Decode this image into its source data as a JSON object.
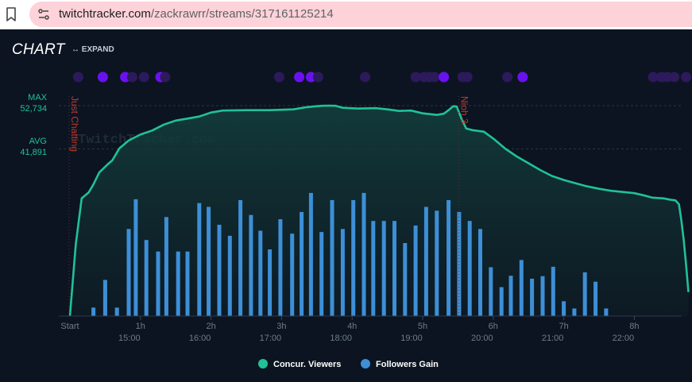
{
  "browser": {
    "url_host": "twitchtracker.com",
    "url_path": "/zackrawrr/streams/317161125214"
  },
  "header": {
    "title": "CHART",
    "expand_label": "EXPAND"
  },
  "watermark": "TwitchTracker.com",
  "stats": {
    "max_label": "MAX",
    "max_value": "52,734",
    "avg_label": "AVG",
    "avg_value": "41,891"
  },
  "games": [
    {
      "label": "Just Chatting",
      "start_min": 0
    },
    {
      "label": "Nioh 3",
      "start_min": 330
    }
  ],
  "colors": {
    "viewers": "#21c197",
    "followers": "#3d8fd7",
    "game_label": "#c0392b",
    "dot_bright": "#6a11f0",
    "dot_dim": "#2c1a5c"
  },
  "event_dots": [
    {
      "t": 7,
      "bright": false
    },
    {
      "t": 28,
      "bright": true
    },
    {
      "t": 47,
      "bright": true
    },
    {
      "t": 53,
      "bright": false
    },
    {
      "t": 63,
      "bright": false
    },
    {
      "t": 77,
      "bright": true
    },
    {
      "t": 81,
      "bright": false
    },
    {
      "t": 178,
      "bright": false
    },
    {
      "t": 195,
      "bright": true
    },
    {
      "t": 205,
      "bright": true
    },
    {
      "t": 211,
      "bright": false
    },
    {
      "t": 251,
      "bright": false
    },
    {
      "t": 294,
      "bright": false
    },
    {
      "t": 301,
      "bright": false
    },
    {
      "t": 306,
      "bright": false
    },
    {
      "t": 310,
      "bright": false
    },
    {
      "t": 318,
      "bright": true
    },
    {
      "t": 334,
      "bright": false
    },
    {
      "t": 338,
      "bright": false
    },
    {
      "t": 372,
      "bright": false
    },
    {
      "t": 385,
      "bright": true
    },
    {
      "t": 496,
      "bright": false
    },
    {
      "t": 503,
      "bright": false
    },
    {
      "t": 508,
      "bright": false
    },
    {
      "t": 514,
      "bright": false
    },
    {
      "t": 524,
      "bright": false
    }
  ],
  "chart_data": {
    "type": "line",
    "x_unit": "minutes since start",
    "x_ticks": [
      "Start",
      "1h",
      "2h",
      "3h",
      "4h",
      "5h",
      "6h",
      "7h",
      "8h"
    ],
    "x_clock_ticks": [
      "15:00",
      "16:00",
      "17:00",
      "18:00",
      "19:00",
      "20:00",
      "21:00",
      "22:00"
    ],
    "xlim": [
      0,
      522
    ],
    "series": [
      {
        "name": "Concur. Viewers",
        "points": [
          [
            0,
            0
          ],
          [
            5,
            18000
          ],
          [
            10,
            29500
          ],
          [
            16,
            31000
          ],
          [
            20,
            33000
          ],
          [
            25,
            36000
          ],
          [
            32,
            38000
          ],
          [
            36,
            39000
          ],
          [
            42,
            42000
          ],
          [
            50,
            44000
          ],
          [
            60,
            45500
          ],
          [
            70,
            46500
          ],
          [
            80,
            48000
          ],
          [
            90,
            49000
          ],
          [
            100,
            49500
          ],
          [
            110,
            50000
          ],
          [
            120,
            51000
          ],
          [
            130,
            51500
          ],
          [
            150,
            51600
          ],
          [
            170,
            51600
          ],
          [
            190,
            51800
          ],
          [
            200,
            52300
          ],
          [
            210,
            52600
          ],
          [
            215,
            52700
          ],
          [
            220,
            52734
          ],
          [
            226,
            52700
          ],
          [
            232,
            52200
          ],
          [
            245,
            52000
          ],
          [
            260,
            52100
          ],
          [
            270,
            51800
          ],
          [
            280,
            51400
          ],
          [
            290,
            51500
          ],
          [
            300,
            50800
          ],
          [
            312,
            50400
          ],
          [
            318,
            50700
          ],
          [
            322,
            51600
          ],
          [
            326,
            52600
          ],
          [
            329,
            52500
          ],
          [
            333,
            49500
          ],
          [
            337,
            47000
          ],
          [
            342,
            46600
          ],
          [
            352,
            46200
          ],
          [
            360,
            44500
          ],
          [
            370,
            42000
          ],
          [
            380,
            40000
          ],
          [
            390,
            38300
          ],
          [
            400,
            36600
          ],
          [
            410,
            35100
          ],
          [
            420,
            34100
          ],
          [
            430,
            33300
          ],
          [
            440,
            32500
          ],
          [
            450,
            31900
          ],
          [
            460,
            31400
          ],
          [
            470,
            31100
          ],
          [
            480,
            30800
          ],
          [
            490,
            30100
          ],
          [
            495,
            29700
          ],
          [
            505,
            29500
          ],
          [
            510,
            29200
          ],
          [
            515,
            29000
          ],
          [
            518,
            28000
          ],
          [
            520,
            24000
          ],
          [
            522,
            19000
          ],
          [
            524,
            13000
          ],
          [
            526,
            6000
          ]
        ]
      },
      {
        "name": "Followers Gain",
        "bars": [
          [
            20,
            2
          ],
          [
            30,
            8.5
          ],
          [
            40,
            2
          ],
          [
            50,
            20.5
          ],
          [
            56,
            27.5
          ],
          [
            65,
            17.9
          ],
          [
            75,
            15.2
          ],
          [
            82,
            23.3
          ],
          [
            92,
            15.2
          ],
          [
            100,
            15.2
          ],
          [
            110,
            26.6
          ],
          [
            118,
            25.7
          ],
          [
            127,
            21.5
          ],
          [
            136,
            18.9
          ],
          [
            145,
            27.3
          ],
          [
            154,
            23.8
          ],
          [
            162,
            20.1
          ],
          [
            170,
            15.7
          ],
          [
            179,
            22.8
          ],
          [
            189,
            19.4
          ],
          [
            197,
            24.5
          ],
          [
            205,
            29
          ],
          [
            214,
            19.8
          ],
          [
            223,
            27.3
          ],
          [
            232,
            20.5
          ],
          [
            241,
            27.3
          ],
          [
            250,
            29
          ],
          [
            258,
            22.4
          ],
          [
            267,
            22.4
          ],
          [
            276,
            22.4
          ],
          [
            285,
            17.2
          ],
          [
            294,
            21.3
          ],
          [
            303,
            25.7
          ],
          [
            312,
            24.8
          ],
          [
            322,
            27.3
          ],
          [
            331,
            24.5
          ],
          [
            340,
            22.4
          ],
          [
            349,
            20.5
          ],
          [
            358,
            11.5
          ],
          [
            367,
            6.8
          ],
          [
            375,
            9.5
          ],
          [
            384,
            13.2
          ],
          [
            393,
            8.8
          ],
          [
            402,
            9.4
          ],
          [
            411,
            11.6
          ],
          [
            420,
            3.5
          ],
          [
            429,
            1.8
          ],
          [
            438,
            10.3
          ],
          [
            447,
            8.1
          ],
          [
            456,
            1.8
          ]
        ]
      }
    ],
    "y_reference_lines": [
      {
        "label": "MAX",
        "value": 52734
      },
      {
        "label": "AVG",
        "value": 41891
      }
    ],
    "legend": {
      "position": "bottom-center"
    }
  }
}
